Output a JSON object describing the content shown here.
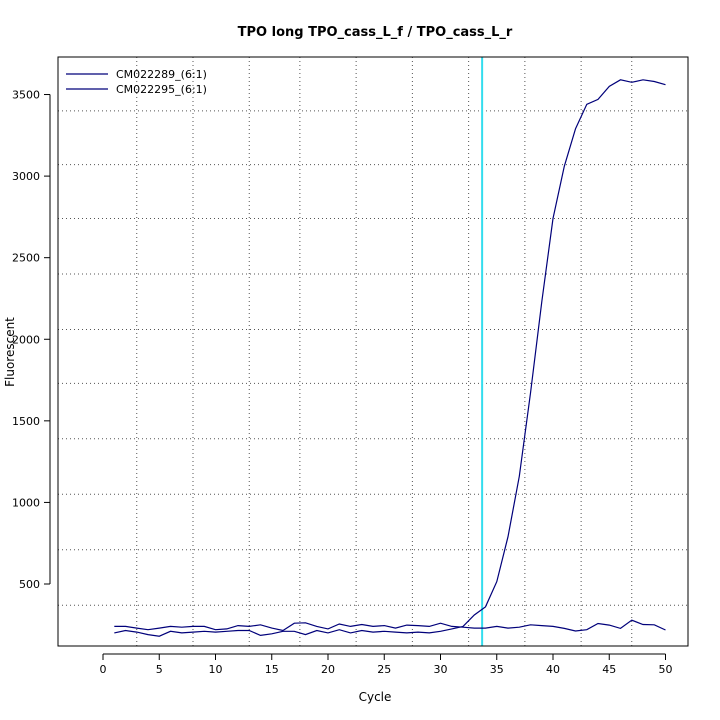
{
  "chart_data": {
    "type": "line",
    "title": "TPO long TPO_cass_L_f / TPO_cass_L_r",
    "xlabel": "Cycle",
    "ylabel": "Fluorescent",
    "xlim": [
      -4,
      52
    ],
    "ylim": [
      120,
      3730
    ],
    "x_ticks": [
      0,
      5,
      10,
      15,
      20,
      25,
      30,
      35,
      40,
      45,
      50
    ],
    "y_ticks": [
      500,
      1000,
      1500,
      2000,
      2500,
      3000,
      3500
    ],
    "vertical_grid_x": [
      3,
      8,
      13,
      17.5,
      22.5,
      27.5,
      32.5,
      37.5,
      42.5,
      47
    ],
    "horizontal_grid_y": [
      370,
      710,
      1050,
      1390,
      1730,
      2060,
      2400,
      2740,
      3070,
      3400
    ],
    "grid": true,
    "legend_position": "top-left",
    "threshold_line": {
      "x": 33.7,
      "color": "#33ddee"
    },
    "series": [
      {
        "name": "CM022289_(6:1)",
        "color": "#00007a",
        "x": [
          1,
          2,
          3,
          4,
          5,
          6,
          7,
          8,
          9,
          10,
          11,
          12,
          13,
          14,
          15,
          16,
          17,
          18,
          19,
          20,
          21,
          22,
          23,
          24,
          25,
          26,
          27,
          28,
          29,
          30,
          31,
          32,
          33,
          34,
          35,
          36,
          37,
          38,
          39,
          40,
          41,
          42,
          43,
          44,
          45,
          46,
          47,
          48,
          49,
          50
        ],
        "values": [
          240,
          240,
          230,
          220,
          230,
          240,
          235,
          240,
          240,
          220,
          225,
          245,
          240,
          250,
          230,
          215,
          260,
          262,
          240,
          225,
          255,
          240,
          252,
          240,
          245,
          230,
          248,
          245,
          240,
          260,
          240,
          235,
          230,
          230,
          240,
          230,
          235,
          250,
          245,
          240,
          228,
          212,
          220,
          258,
          248,
          228,
          278,
          252,
          250,
          218
        ]
      },
      {
        "name": "CM022295_(6:1)",
        "color": "#00007a",
        "x": [
          1,
          2,
          3,
          4,
          5,
          6,
          7,
          8,
          9,
          10,
          11,
          12,
          13,
          14,
          15,
          16,
          17,
          18,
          19,
          20,
          21,
          22,
          23,
          24,
          25,
          26,
          27,
          28,
          29,
          30,
          31,
          32,
          33,
          34,
          35,
          36,
          37,
          38,
          39,
          40,
          41,
          42,
          43,
          44,
          45,
          46,
          47,
          48,
          49,
          50
        ],
        "values": [
          200,
          215,
          205,
          190,
          180,
          210,
          200,
          205,
          210,
          205,
          210,
          215,
          215,
          185,
          195,
          210,
          210,
          190,
          215,
          200,
          220,
          200,
          215,
          205,
          210,
          205,
          200,
          205,
          200,
          210,
          225,
          240,
          310,
          360,
          515,
          790,
          1160,
          1670,
          2230,
          2740,
          3060,
          3290,
          3440,
          3470,
          3550,
          3590,
          3575,
          3590,
          3580,
          3560
        ]
      }
    ]
  }
}
